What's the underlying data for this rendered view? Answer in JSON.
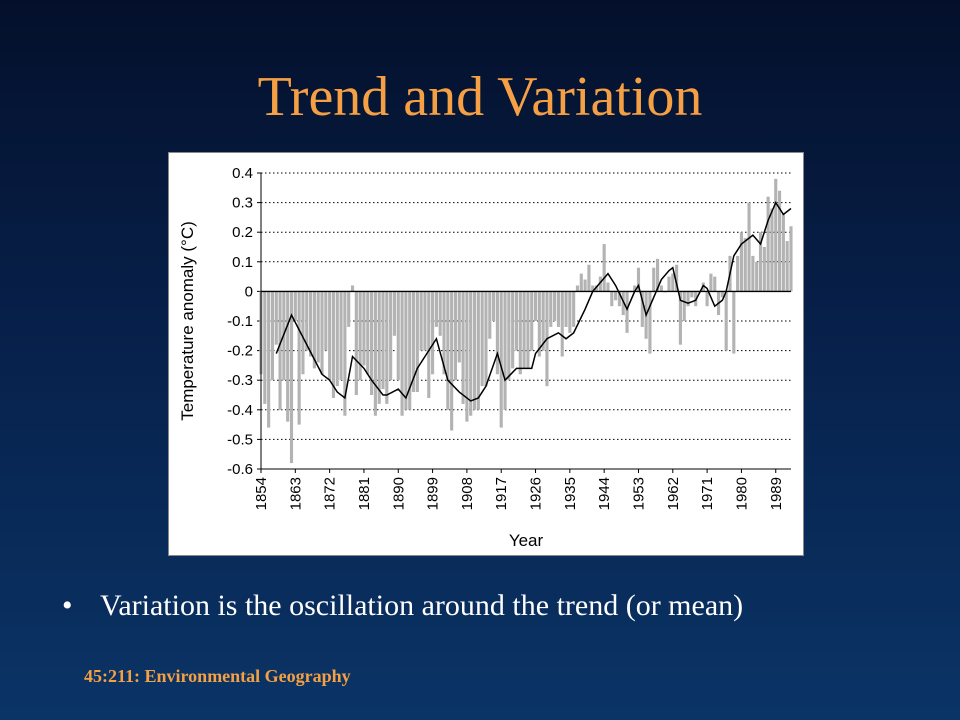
{
  "slide": {
    "title": "Trend and Variation",
    "bullet": "Variation is the oscillation around the trend (or mean)",
    "footer": "45:211: Environmental Geography"
  },
  "colors": {
    "title": "#f5a044",
    "footer": "#f5a044",
    "bullet_text": "#ffffff",
    "bars": "#b3b3b3",
    "trend_line": "#000000"
  },
  "chart_data": {
    "type": "bar",
    "title": "",
    "xlabel": "Year",
    "ylabel": "Temperature anomaly (°C)",
    "ylim": [
      -0.6,
      0.4
    ],
    "xlim": [
      1854,
      1993
    ],
    "grid": true,
    "y_ticks": [
      "0.4",
      "0.3",
      "0.2",
      "0.1",
      "0",
      "-0.1",
      "-0.2",
      "-0.3",
      "-0.4",
      "-0.5",
      "-0.6"
    ],
    "x_ticks": [
      "1854",
      "1863",
      "1872",
      "1881",
      "1890",
      "1899",
      "1908",
      "1917",
      "1926",
      "1935",
      "1944",
      "1953",
      "1962",
      "1971",
      "1980",
      "1989"
    ],
    "series": [
      {
        "kind": "bar",
        "x": [
          1854,
          1855,
          1856,
          1857,
          1858,
          1859,
          1860,
          1861,
          1862,
          1863,
          1864,
          1865,
          1866,
          1867,
          1868,
          1869,
          1870,
          1871,
          1872,
          1873,
          1874,
          1875,
          1876,
          1877,
          1878,
          1879,
          1880,
          1881,
          1882,
          1883,
          1884,
          1885,
          1886,
          1887,
          1888,
          1889,
          1890,
          1891,
          1892,
          1893,
          1894,
          1895,
          1896,
          1897,
          1898,
          1899,
          1900,
          1901,
          1902,
          1903,
          1904,
          1905,
          1906,
          1907,
          1908,
          1909,
          1910,
          1911,
          1912,
          1913,
          1914,
          1915,
          1916,
          1917,
          1918,
          1919,
          1920,
          1921,
          1922,
          1923,
          1924,
          1925,
          1926,
          1927,
          1928,
          1929,
          1930,
          1931,
          1932,
          1933,
          1934,
          1935,
          1936,
          1937,
          1938,
          1939,
          1940,
          1941,
          1942,
          1943,
          1944,
          1945,
          1946,
          1947,
          1948,
          1949,
          1950,
          1951,
          1952,
          1953,
          1954,
          1955,
          1956,
          1957,
          1958,
          1959,
          1960,
          1961,
          1962,
          1963,
          1964,
          1965,
          1966,
          1967,
          1968,
          1969,
          1970,
          1971,
          1972,
          1973,
          1974,
          1975,
          1976,
          1977,
          1978,
          1979,
          1980,
          1981,
          1982,
          1983,
          1984,
          1985,
          1986,
          1987,
          1988,
          1989,
          1990,
          1991,
          1992,
          1993
        ],
        "values": [
          -0.28,
          -0.38,
          -0.46,
          -0.3,
          -0.18,
          -0.4,
          -0.3,
          -0.44,
          -0.58,
          -0.1,
          -0.45,
          -0.28,
          -0.2,
          -0.22,
          -0.26,
          -0.24,
          -0.28,
          -0.2,
          -0.3,
          -0.36,
          -0.32,
          -0.3,
          -0.42,
          -0.12,
          0.02,
          -0.35,
          -0.3,
          -0.25,
          -0.28,
          -0.35,
          -0.42,
          -0.38,
          -0.33,
          -0.38,
          -0.3,
          -0.15,
          -0.3,
          -0.42,
          -0.4,
          -0.4,
          -0.34,
          -0.34,
          -0.2,
          -0.2,
          -0.36,
          -0.28,
          -0.12,
          -0.15,
          -0.28,
          -0.4,
          -0.47,
          -0.3,
          -0.24,
          -0.38,
          -0.44,
          -0.42,
          -0.4,
          -0.4,
          -0.32,
          -0.32,
          -0.16,
          -0.1,
          -0.28,
          -0.46,
          -0.4,
          -0.3,
          -0.26,
          -0.2,
          -0.28,
          -0.26,
          -0.26,
          -0.2,
          -0.1,
          -0.22,
          -0.2,
          -0.32,
          -0.12,
          -0.1,
          -0.12,
          -0.22,
          -0.12,
          -0.14,
          -0.12,
          0.02,
          0.06,
          0.04,
          0.09,
          0.02,
          0.02,
          0.05,
          0.16,
          0.03,
          -0.05,
          -0.03,
          -0.05,
          -0.08,
          -0.14,
          0.0,
          0.02,
          0.08,
          -0.12,
          -0.16,
          -0.21,
          0.08,
          0.11,
          0.02,
          0.0,
          0.05,
          0.06,
          0.09,
          -0.18,
          -0.1,
          -0.05,
          -0.02,
          -0.05,
          0.0,
          0.03,
          -0.05,
          0.06,
          0.05,
          -0.08,
          -0.02,
          -0.2,
          0.12,
          -0.21,
          0.12,
          0.2,
          0.18,
          0.3,
          0.12,
          0.1,
          0.2,
          0.15,
          0.32,
          0.28,
          0.38,
          0.34,
          0.26,
          0.17,
          0.22
        ]
      },
      {
        "kind": "line",
        "name": "",
        "x": [
          1858,
          1862,
          1870,
          1872,
          1874,
          1876,
          1878,
          1881,
          1883,
          1886,
          1887,
          1890,
          1892,
          1895,
          1897,
          1900,
          1903,
          1906,
          1908,
          1909,
          1911,
          1913,
          1916,
          1918,
          1921,
          1925,
          1926,
          1929,
          1932,
          1934,
          1936,
          1939,
          1941,
          1943,
          1945,
          1947,
          1950,
          1952,
          1953,
          1955,
          1956,
          1957,
          1959,
          1961,
          1962,
          1964,
          1966,
          1968,
          1970,
          1971,
          1973,
          1975,
          1976,
          1978,
          1980,
          1983,
          1985,
          1987,
          1989,
          1991,
          1993
        ],
        "values": [
          -0.21,
          -0.08,
          -0.28,
          -0.3,
          -0.34,
          -0.36,
          -0.22,
          -0.26,
          -0.3,
          -0.35,
          -0.35,
          -0.33,
          -0.36,
          -0.26,
          -0.22,
          -0.16,
          -0.3,
          -0.34,
          -0.36,
          -0.37,
          -0.36,
          -0.32,
          -0.21,
          -0.3,
          -0.26,
          -0.26,
          -0.21,
          -0.16,
          -0.14,
          -0.16,
          -0.14,
          -0.06,
          0.0,
          0.03,
          0.06,
          0.02,
          -0.06,
          0.0,
          0.02,
          -0.08,
          -0.05,
          -0.02,
          0.04,
          0.07,
          0.08,
          -0.03,
          -0.04,
          -0.03,
          0.02,
          0.01,
          -0.05,
          -0.03,
          0.0,
          0.12,
          0.16,
          0.19,
          0.16,
          0.24,
          0.3,
          0.26,
          0.28
        ]
      }
    ]
  }
}
